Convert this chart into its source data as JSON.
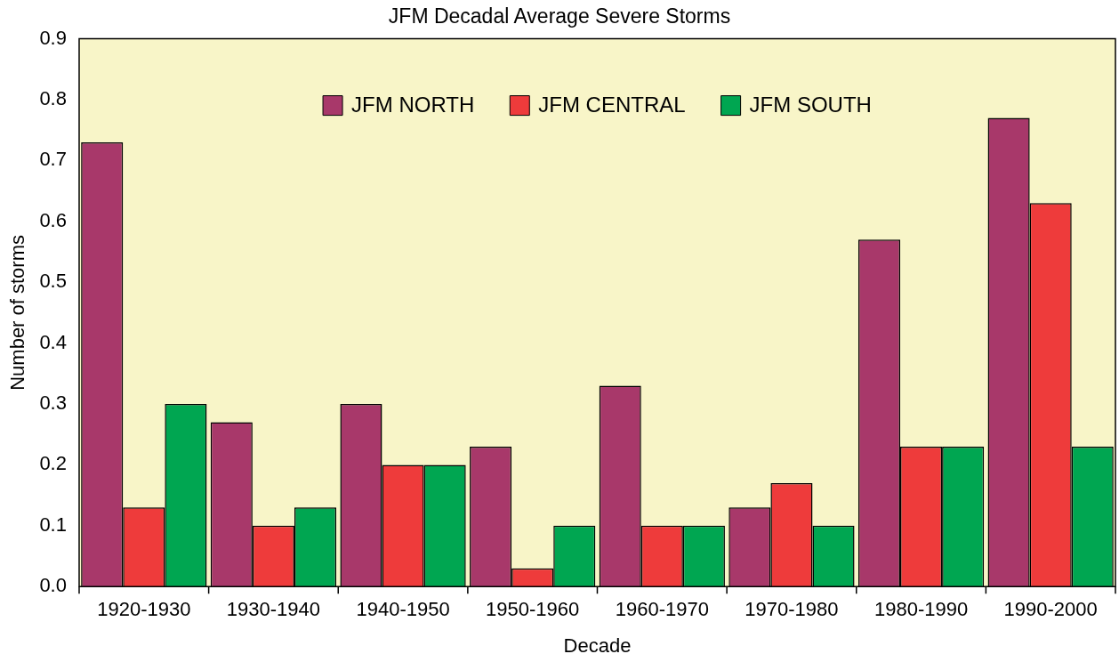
{
  "chart_data": {
    "type": "bar",
    "title": "JFM Decadal Average Severe Storms",
    "xlabel": "Decade",
    "ylabel": "Number of storms",
    "categories": [
      "1920-1930",
      "1930-1940",
      "1940-1950",
      "1950-1960",
      "1960-1970",
      "1970-1980",
      "1980-1990",
      "1990-2000"
    ],
    "series": [
      {
        "name": "JFM NORTH",
        "color": "#a8386a",
        "values": [
          0.73,
          0.27,
          0.3,
          0.23,
          0.33,
          0.13,
          0.57,
          0.77
        ]
      },
      {
        "name": "JFM CENTRAL",
        "color": "#ee3b3b",
        "values": [
          0.13,
          0.1,
          0.2,
          0.03,
          0.1,
          0.17,
          0.23,
          0.63
        ]
      },
      {
        "name": "JFM SOUTH",
        "color": "#00a651",
        "values": [
          0.3,
          0.13,
          0.2,
          0.1,
          0.1,
          0.1,
          0.23,
          0.23
        ]
      }
    ],
    "ylim": [
      0,
      0.9
    ],
    "yticks": [
      {
        "value": 0,
        "label": "0.0"
      },
      0.1,
      0.2,
      0.3,
      0.4,
      0.5,
      0.6,
      0.7,
      0.8,
      0.9
    ],
    "grid": false,
    "legend": "top"
  }
}
